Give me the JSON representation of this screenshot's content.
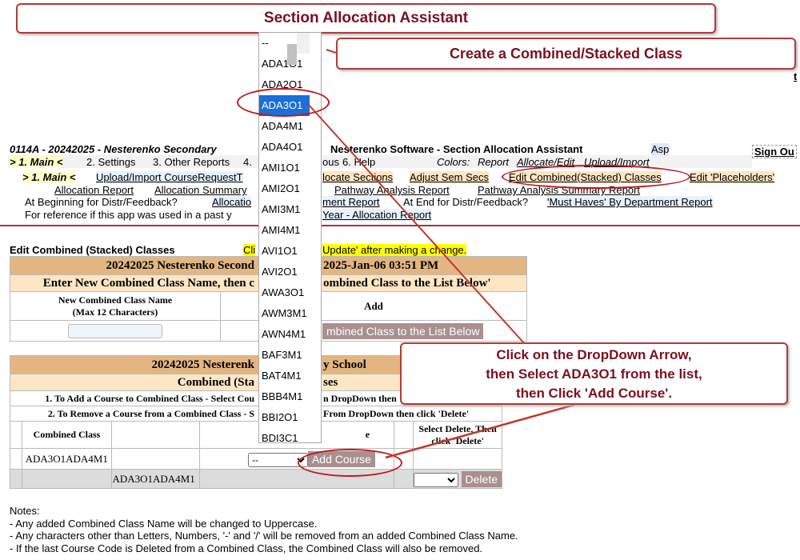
{
  "callouts": {
    "title": "Section Allocation Assistant",
    "create": "Create a Combined/Stacked Class",
    "instruction": [
      "Click on the DropDown Arrow,",
      "then Select ADA3O1 from the list,",
      "then Click 'Add Course'."
    ]
  },
  "header": {
    "school_left": "0114A - 20242025 - Nesterenko Secondary",
    "app_title": "Nesterenko Software - Section Allocation Assistant",
    "asp": "Asp",
    "sign_out": "Sign Ou",
    "edge_link": "t"
  },
  "menu": {
    "main": "> 1. Main <",
    "settings": "2. Settings",
    "other": "3. Other Reports",
    "four": "4.",
    "five_frag": "ous",
    "help": "6. Help",
    "colors_label": "Colors:",
    "colors_report": "Report",
    "colors_allocate": "Allocate/Edit",
    "colors_upload": "Upload/Import"
  },
  "submenu": {
    "main": "> 1. Main <",
    "upload": "Upload/Import CourseRequestT",
    "allocate": "locate Sections",
    "adjust": "Adjust Sem Secs",
    "edit_combined": "Edit Combined(Stacked) Classes",
    "placeholders": "Edit 'Placeholders'",
    "alloc_report": "Allocation Report",
    "alloc_summary": "Allocation Summary",
    "pathway": "Pathway Analysis Report",
    "pathway_summary": "Pathway Analysis Summary Report",
    "begin_label": "At Beginning for Distr/Feedback?",
    "begin_link": "Allocatio",
    "begin_link2": "ment Report",
    "end_label": "At End for Distr/Feedback?",
    "end_link": "'Must Haves' By Department Report",
    "ref_label": "For reference if this app was used in a past y",
    "ref_link": "Year - Allocation Report"
  },
  "page": {
    "title": "Edit Combined (Stacked) Classes",
    "notice_left": "Cli",
    "notice_right": "Update' after making a change."
  },
  "table1": {
    "header_left": "20242025 Nesterenko Second",
    "header_right": "2025-Jan-06 03:51 PM",
    "sub_left": "Enter New Combined Class Name, then c",
    "sub_right": "ombined Class to the List Below'",
    "col_name": "New Combined Class Name",
    "col_name2": "(Max 12 Characters)",
    "col_add": "Add",
    "name_value": "",
    "add_button": "mbined Class to the List Below"
  },
  "table2": {
    "header_left": "20242025 Nesterenk",
    "header_right": "y School",
    "sub_left": "Combined (Sta",
    "sub_right": "ses",
    "instr1_left": "1. To Add a Course to Combined Class - Select Cou",
    "instr1_right": "n DropDown then",
    "instr2_left": "2. To Remove a Course from a Combined Class - S",
    "instr2_right": "From DropDown then click 'Delete'",
    "col_combined": "Combined Class",
    "col_course_frag": "e",
    "col_delete": "Select Delete, Then click 'Delete'",
    "row1_class": "ADA3O1ADA4M1",
    "row1_select": "--",
    "add_course": "Add Course",
    "row2_course": "ADA3O1ADA4M1",
    "delete": "Delete"
  },
  "dropdown": {
    "options": [
      "--",
      "ADA1O1",
      "ADA2O1",
      "ADA3O1",
      "ADA4M1",
      "ADA4O1",
      "AMI1O1",
      "AMI2O1",
      "AMI3M1",
      "AMI4M1",
      "AVI1O1",
      "AVI2O1",
      "AWA3O1",
      "AWM3M1",
      "AWN4M1",
      "BAF3M1",
      "BAT4M1",
      "BBB4M1",
      "BBI2O1",
      "BDI3C1"
    ],
    "selected": "ADA3O1"
  },
  "notes": {
    "title": "Notes:",
    "items": [
      "- Any added Combined Class Name will be changed to Uppercase.",
      "- Any characters other than Letters, Numbers, '-' and '/' will be removed from an added Combined Class Name.",
      "- If the last Course Code is Deleted from a Combined Class, the Combined Class will also be removed."
    ]
  },
  "colors": {
    "accent": "#7a1020",
    "annotation": "#c0161c",
    "header": "#e3b681",
    "subheader": "#fde6c4",
    "selected": "#1a6fd8"
  }
}
